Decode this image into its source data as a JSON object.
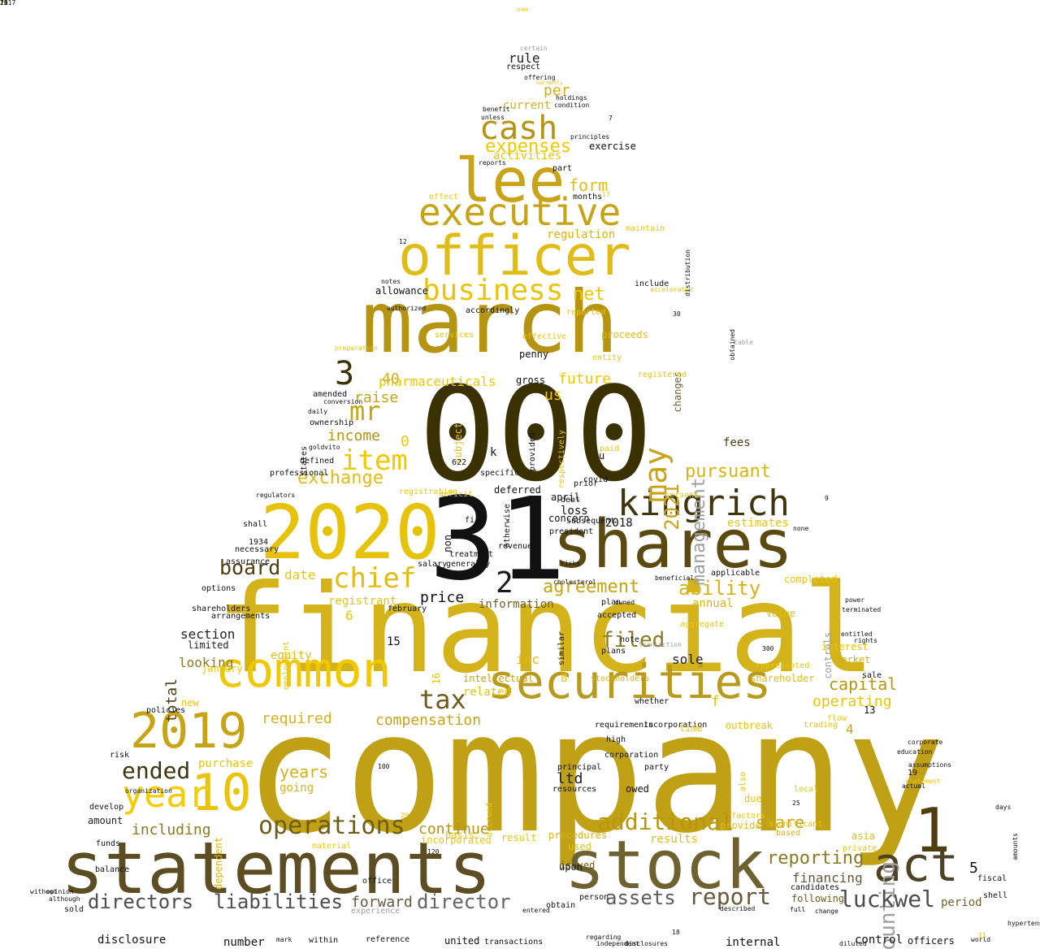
{
  "words": [
    {
      "text": "company",
      "color": "#C0A015"
    },
    {
      "text": "financial",
      "color": "#D4B21A"
    },
    {
      "text": "000",
      "color": "#3B3100"
    },
    {
      "text": "march",
      "color": "#B59412"
    },
    {
      "text": "31",
      "color": "#111111"
    },
    {
      "text": "statements",
      "color": "#5C4E22"
    },
    {
      "text": "stock",
      "color": "#6E6231"
    },
    {
      "text": "2020",
      "color": "#E6C20A"
    },
    {
      "text": "officer",
      "color": "#E0BC16"
    },
    {
      "text": "shares",
      "color": "#5A4A10"
    },
    {
      "text": "securities",
      "color": "#B89A1E"
    },
    {
      "text": "common",
      "color": "#F0C800"
    },
    {
      "text": "lee",
      "color": "#C9A318"
    },
    {
      "text": "executive",
      "color": "#C6A414"
    },
    {
      "text": "2019",
      "color": "#C6A414"
    },
    {
      "text": "act",
      "color": "#4E4224"
    },
    {
      "text": "1",
      "color": "#4E3E10"
    },
    {
      "text": "kingrich",
      "color": "#3F3510"
    },
    {
      "text": "10",
      "color": "#E8C50C"
    },
    {
      "text": "cash",
      "color": "#B59412"
    },
    {
      "text": "year",
      "color": "#F5CC00"
    },
    {
      "text": "may",
      "color": "#C9A318"
    },
    {
      "text": "accounting",
      "color": "#9E9E9E"
    },
    {
      "text": "business",
      "color": "#E8C50C"
    },
    {
      "text": "chief",
      "color": "#E0BC16"
    },
    {
      "text": "operations",
      "color": "#6E5D18"
    },
    {
      "text": "item",
      "color": "#F0C800"
    },
    {
      "text": "mr",
      "color": "#C6A414"
    },
    {
      "text": "additional",
      "color": "#B8960E"
    },
    {
      "text": "directors",
      "color": "#4D4D4D"
    },
    {
      "text": "liabilities",
      "color": "#4D4D4D"
    },
    {
      "text": "report",
      "color": "#66583A"
    },
    {
      "text": "luckwel",
      "color": "#4D4D4D"
    },
    {
      "text": "tax",
      "color": "#6E5D18"
    },
    {
      "text": "ended",
      "color": "#3F3510"
    },
    {
      "text": "3",
      "color": "#3B3100"
    },
    {
      "text": "2",
      "color": "#1A1A1A"
    },
    {
      "text": "assets",
      "color": "#5C5C5C"
    },
    {
      "text": "management",
      "color": "#9E9E9E"
    },
    {
      "text": "2021",
      "color": "#C9A318"
    },
    {
      "text": "board",
      "color": "#4E3E10"
    },
    {
      "text": "expenses",
      "color": "#F0C800"
    },
    {
      "text": "exchange",
      "color": "#E0BC16"
    },
    {
      "text": "ability",
      "color": "#D4B21A"
    },
    {
      "text": "agreement",
      "color": "#C6A414"
    },
    {
      "text": "director",
      "color": "#666666"
    },
    {
      "text": "filed",
      "color": "#8A7A22"
    },
    {
      "text": "reporting",
      "color": "#8A7A22"
    },
    {
      "text": "pursuant",
      "color": "#D9B412"
    },
    {
      "text": "net",
      "color": "#F0C800"
    },
    {
      "text": "form",
      "color": "#E0BC16"
    },
    {
      "text": "share",
      "color": "#C9A318"
    },
    {
      "text": "capital",
      "color": "#B8960E"
    },
    {
      "text": "required",
      "color": "#D4B21A"
    },
    {
      "text": "compensation",
      "color": "#C6A414"
    },
    {
      "text": "including",
      "color": "#8A7A22"
    },
    {
      "text": "years",
      "color": "#D4B21A"
    },
    {
      "text": "income",
      "color": "#B59412"
    },
    {
      "text": "raise",
      "color": "#C6A414"
    },
    {
      "text": "pharmaceuticals",
      "color": "#F0C800"
    },
    {
      "text": "future",
      "color": "#F0C800"
    },
    {
      "text": "us",
      "color": "#F0C800"
    },
    {
      "text": "continue",
      "color": "#B59412"
    },
    {
      "text": "forward",
      "color": "#66583A"
    },
    {
      "text": "financing",
      "color": "#66583A"
    },
    {
      "text": "operating",
      "color": "#E8C50C"
    },
    {
      "text": "section",
      "color": "#222222"
    },
    {
      "text": "price",
      "color": "#111111"
    },
    {
      "text": "date",
      "color": "#E8C50C"
    },
    {
      "text": "regulation",
      "color": "#D9B412"
    },
    {
      "text": "activities",
      "color": "#E8C50C"
    },
    {
      "text": "current",
      "color": "#D4B21A"
    },
    {
      "text": "per",
      "color": "#D4B21A"
    },
    {
      "text": "rule",
      "color": "#222222"
    },
    {
      "text": "total",
      "color": "#4E3E10"
    },
    {
      "text": "looking",
      "color": "#8A7A22"
    },
    {
      "text": "sole",
      "color": "#222222"
    },
    {
      "text": "fees",
      "color": "#4E3E10"
    },
    {
      "text": "ltd",
      "color": "#222222"
    },
    {
      "text": "inc",
      "color": "#E0BC16"
    },
    {
      "text": "purchase",
      "color": "#E8C50C"
    },
    {
      "text": "going",
      "color": "#D4B21A"
    },
    {
      "text": "related",
      "color": "#E8C50C"
    },
    {
      "text": "information",
      "color": "#6E6231"
    },
    {
      "text": "equity",
      "color": "#E0BC16"
    },
    {
      "text": "annual",
      "color": "#D9B412"
    },
    {
      "text": "registrant",
      "color": "#E8C50C"
    },
    {
      "text": "intellectual",
      "color": "#C6A414"
    },
    {
      "text": "estimates",
      "color": "#E8C50C"
    },
    {
      "text": "amount",
      "color": "#222222"
    },
    {
      "text": "dependent",
      "color": "#D9B412"
    },
    {
      "text": "results",
      "color": "#E0BC16"
    },
    {
      "text": "procedures",
      "color": "#D4B21A"
    },
    {
      "text": "issued",
      "color": "#6E5D18"
    },
    {
      "text": "upon",
      "color": "#111111"
    },
    {
      "text": "following",
      "color": "#6E5D18"
    },
    {
      "text": "period",
      "color": "#6E6231"
    },
    {
      "text": "limited",
      "color": "#222222"
    },
    {
      "text": "interest",
      "color": "#E8C50C"
    },
    {
      "text": "market",
      "color": "#D4B21A"
    },
    {
      "text": "value",
      "color": "#E0BC16"
    },
    {
      "text": "shareholder",
      "color": "#E0BC16"
    },
    {
      "text": "stockholders",
      "color": "#D4B21A"
    },
    {
      "text": "allowance",
      "color": "#111111"
    },
    {
      "text": "proceeds",
      "color": "#E0BC16"
    },
    {
      "text": "2018",
      "color": "#111111"
    },
    {
      "text": "concern",
      "color": "#111111"
    },
    {
      "text": "loss",
      "color": "#111111"
    },
    {
      "text": "deferred",
      "color": "#111111"
    },
    {
      "text": "april",
      "color": "#111111"
    },
    {
      "text": "plan",
      "color": "#111111"
    },
    {
      "text": "plans",
      "color": "#111111"
    },
    {
      "text": "note",
      "color": "#111111"
    },
    {
      "text": "whether",
      "color": "#111111"
    },
    {
      "text": "changes",
      "color": "#6E6231"
    },
    {
      "text": "registered",
      "color": "#E8C50C"
    },
    {
      "text": "penny",
      "color": "#111111"
    },
    {
      "text": "gross",
      "color": "#111111"
    },
    {
      "text": "40",
      "color": "#D4B21A"
    },
    {
      "text": "0",
      "color": "#F0C800"
    },
    {
      "text": "6",
      "color": "#E8C50C"
    },
    {
      "text": "8",
      "color": "#E8C50C"
    },
    {
      "text": "15",
      "color": "#111111"
    },
    {
      "text": "f",
      "color": "#E8C50C"
    },
    {
      "text": "k",
      "color": "#111111"
    },
    {
      "text": "u",
      "color": "#111111"
    },
    {
      "text": "5",
      "color": "#111111"
    },
    {
      "text": "4",
      "color": "#C6A414"
    },
    {
      "text": "13",
      "color": "#111111"
    },
    {
      "text": "19",
      "color": "#111111"
    },
    {
      "text": "completed",
      "color": "#E8C50C"
    },
    {
      "text": "controls",
      "color": "#9E9E9E"
    },
    {
      "text": "based",
      "color": "#D4B21A"
    },
    {
      "text": "asia",
      "color": "#E0BC16"
    },
    {
      "text": "provide",
      "color": "#E0BC16"
    },
    {
      "text": "result",
      "color": "#E8C50C"
    },
    {
      "text": "used",
      "color": "#E8C50C"
    },
    {
      "text": "basis",
      "color": "#E8C50C"
    },
    {
      "text": "incorporated",
      "color": "#E8C50C"
    },
    {
      "text": "material",
      "color": "#E8C50C"
    },
    {
      "text": "new",
      "color": "#E8C50C"
    },
    {
      "text": "january",
      "color": "#E8C50C"
    },
    {
      "text": "employment",
      "color": "#E8C50C"
    },
    {
      "text": "accrued",
      "color": "#E8C50C"
    },
    {
      "text": "shareholders",
      "color": "#111111"
    },
    {
      "text": "options",
      "color": "#111111"
    },
    {
      "text": "arrangements",
      "color": "#111111"
    },
    {
      "text": "assurance",
      "color": "#111111"
    },
    {
      "text": "necessary",
      "color": "#111111"
    },
    {
      "text": "1934",
      "color": "#111111"
    },
    {
      "text": "shall",
      "color": "#111111"
    },
    {
      "text": "professional",
      "color": "#111111"
    },
    {
      "text": "defined",
      "color": "#111111"
    },
    {
      "text": "states",
      "color": "#111111"
    },
    {
      "text": "ownership",
      "color": "#111111"
    },
    {
      "text": "amended",
      "color": "#111111"
    },
    {
      "text": "policies",
      "color": "#111111"
    },
    {
      "text": "funds",
      "color": "#111111"
    },
    {
      "text": "develop",
      "color": "#111111"
    },
    {
      "text": "balance",
      "color": "#111111"
    },
    {
      "text": "risk",
      "color": "#111111"
    },
    {
      "text": "sold",
      "color": "#111111"
    },
    {
      "text": "disclosure",
      "color": "#111111"
    },
    {
      "text": "number",
      "color": "#111111"
    },
    {
      "text": "within",
      "color": "#111111"
    },
    {
      "text": "reference",
      "color": "#111111"
    },
    {
      "text": "united",
      "color": "#111111"
    },
    {
      "text": "transactions",
      "color": "#111111"
    },
    {
      "text": "internal",
      "color": "#111111"
    },
    {
      "text": "control",
      "color": "#111111"
    },
    {
      "text": "officers",
      "color": "#111111"
    },
    {
      "text": "regarding",
      "color": "#111111"
    },
    {
      "text": "independent",
      "color": "#111111"
    },
    {
      "text": "disclosures",
      "color": "#111111"
    },
    {
      "text": "person",
      "color": "#111111"
    },
    {
      "text": "obtain",
      "color": "#111111"
    },
    {
      "text": "entered",
      "color": "#111111"
    },
    {
      "text": "experience",
      "color": "#9E9E9E"
    },
    {
      "text": "office",
      "color": "#111111"
    },
    {
      "text": "fiscal",
      "color": "#111111"
    },
    {
      "text": "shell",
      "color": "#111111"
    },
    {
      "text": "candidates",
      "color": "#111111"
    },
    {
      "text": "full",
      "color": "#111111"
    },
    {
      "text": "change",
      "color": "#111111"
    },
    {
      "text": "statement",
      "color": "#E8C50C"
    },
    {
      "text": "actual",
      "color": "#111111"
    },
    {
      "text": "education",
      "color": "#111111"
    },
    {
      "text": "requirements",
      "color": "#111111"
    },
    {
      "text": "incorporation",
      "color": "#111111"
    },
    {
      "text": "high",
      "color": "#111111"
    },
    {
      "text": "corporation",
      "color": "#111111"
    },
    {
      "text": "party",
      "color": "#111111"
    },
    {
      "text": "principal",
      "color": "#111111"
    },
    {
      "text": "resources",
      "color": "#111111"
    },
    {
      "text": "time",
      "color": "#E8C50C"
    },
    {
      "text": "outbreak",
      "color": "#E8C50C"
    },
    {
      "text": "due",
      "color": "#E8C50C"
    },
    {
      "text": "factors",
      "color": "#E8C50C"
    },
    {
      "text": "significant",
      "color": "#E8C50C"
    },
    {
      "text": "private",
      "color": "#E8C50C"
    },
    {
      "text": "also",
      "color": "#E8C50C"
    },
    {
      "text": "local",
      "color": "#E8C50C"
    },
    {
      "text": "trading",
      "color": "#E8C50C"
    },
    {
      "text": "flow",
      "color": "#E8C50C"
    },
    {
      "text": "sale",
      "color": "#111111"
    },
    {
      "text": "aggregate",
      "color": "#E8C50C"
    },
    {
      "text": "represented",
      "color": "#E8C50C"
    },
    {
      "text": "salary",
      "color": "#111111"
    },
    {
      "text": "generally",
      "color": "#111111"
    },
    {
      "text": "treatment",
      "color": "#111111"
    },
    {
      "text": "revenue",
      "color": "#111111"
    },
    {
      "text": "february",
      "color": "#111111"
    },
    {
      "text": "non",
      "color": "#111111"
    },
    {
      "text": "firm",
      "color": "#111111"
    },
    {
      "text": "otherwise",
      "color": "#111111"
    },
    {
      "text": "subsequent",
      "color": "#111111"
    },
    {
      "text": "president",
      "color": "#111111"
    },
    {
      "text": "covid",
      "color": "#111111"
    },
    {
      "text": "debt",
      "color": "#111111"
    },
    {
      "text": "prior",
      "color": "#111111"
    },
    {
      "text": "subject",
      "color": "#E8C50C"
    },
    {
      "text": "provided",
      "color": "#111111"
    },
    {
      "text": "respectively",
      "color": "#E8C50C"
    },
    {
      "text": "paid",
      "color": "#E8C50C"
    },
    {
      "text": "registration",
      "color": "#E8C50C"
    },
    {
      "text": "deficit",
      "color": "#E8C50C"
    },
    {
      "text": "specific",
      "color": "#111111"
    },
    {
      "text": "persons",
      "color": "#E8C50C"
    },
    {
      "text": "accepted",
      "color": "#111111"
    },
    {
      "text": "similar",
      "color": "#111111"
    },
    {
      "text": "transaction",
      "color": "#9E9E9E"
    },
    {
      "text": "owned",
      "color": "#111111"
    },
    {
      "text": "cholesterol",
      "color": "#111111"
    },
    {
      "text": "risks",
      "color": "#111111"
    },
    {
      "text": "beneficial",
      "color": "#111111"
    },
    {
      "text": "applicable",
      "color": "#111111"
    },
    {
      "text": "one",
      "color": "#E8C50C"
    },
    {
      "text": "certain",
      "color": "#9E9E9E"
    },
    {
      "text": "respect",
      "color": "#111111"
    },
    {
      "text": "offering",
      "color": "#111111"
    },
    {
      "text": "currently",
      "color": "#E8C50C"
    },
    {
      "text": "holdings",
      "color": "#111111"
    },
    {
      "text": "condition",
      "color": "#111111"
    },
    {
      "text": "benefit",
      "color": "#111111"
    },
    {
      "text": "unless",
      "color": "#111111"
    },
    {
      "text": "principles",
      "color": "#111111"
    },
    {
      "text": "reports",
      "color": "#111111"
    },
    {
      "text": "part",
      "color": "#111111"
    },
    {
      "text": "effect",
      "color": "#E8C50C"
    },
    {
      "text": "months",
      "color": "#111111"
    },
    {
      "text": "maintain",
      "color": "#E8C50C"
    },
    {
      "text": "notes",
      "color": "#111111"
    },
    {
      "text": "include",
      "color": "#111111"
    },
    {
      "text": "accelerated",
      "color": "#E8C50C"
    },
    {
      "text": "authorized",
      "color": "#111111"
    },
    {
      "text": "accordingly",
      "color": "#111111"
    },
    {
      "text": "reported",
      "color": "#E8C50C"
    },
    {
      "text": "services",
      "color": "#E8C50C"
    },
    {
      "text": "effective",
      "color": "#E8C50C"
    },
    {
      "text": "entity",
      "color": "#E8C50C"
    },
    {
      "text": "preparation",
      "color": "#E8C50C"
    },
    {
      "text": "conversion",
      "color": "#111111"
    },
    {
      "text": "goldvito",
      "color": "#111111"
    },
    {
      "text": "regulators",
      "color": "#111111"
    },
    {
      "text": "organization",
      "color": "#111111"
    },
    {
      "text": "distribution",
      "color": "#111111"
    },
    {
      "text": "table",
      "color": "#9E9E9E"
    },
    {
      "text": "none",
      "color": "#111111"
    },
    {
      "text": "days",
      "color": "#111111"
    },
    {
      "text": "mark",
      "color": "#111111"
    },
    {
      "text": "although",
      "color": "#111111"
    },
    {
      "text": "opinion",
      "color": "#111111"
    },
    {
      "text": "without",
      "color": "#111111"
    },
    {
      "text": "described",
      "color": "#111111"
    },
    {
      "text": "obtained",
      "color": "#111111"
    },
    {
      "text": "hypertension",
      "color": "#111111"
    },
    {
      "text": "world",
      "color": "#111111"
    },
    {
      "text": "diluted",
      "color": "#111111"
    },
    {
      "text": "corporate",
      "color": "#111111"
    },
    {
      "text": "assumptions",
      "color": "#111111"
    },
    {
      "text": "amounts",
      "color": "#111111"
    },
    {
      "text": "terminated",
      "color": "#111111"
    },
    {
      "text": "entitled",
      "color": "#111111"
    },
    {
      "text": "rights",
      "color": "#111111"
    },
    {
      "text": "power",
      "color": "#111111"
    },
    {
      "text": "exercise",
      "color": "#111111"
    },
    {
      "text": "daily",
      "color": "#111111"
    },
    {
      "text": "owed",
      "color": "#111111"
    },
    {
      "text": "7",
      "color": "#111111"
    },
    {
      "text": "9",
      "color": "#111111"
    },
    {
      "text": "12",
      "color": "#111111"
    },
    {
      "text": "18",
      "color": "#111111"
    },
    {
      "text": "25",
      "color": "#111111"
    },
    {
      "text": "30",
      "color": "#111111"
    },
    {
      "text": "300",
      "color": "#111111"
    },
    {
      "text": "622",
      "color": "#111111"
    },
    {
      "text": "120",
      "color": "#111111"
    },
    {
      "text": "100",
      "color": "#111111"
    },
    {
      "text": "20",
      "color": "#E8C50C"
    },
    {
      "text": "17",
      "color": "#E8C50C"
    },
    {
      "text": "11",
      "color": "#E8C50C"
    },
    {
      "text": "16",
      "color": "#E8C50C"
    },
    {
      "text": "14",
      "color": "#E8C50C"
    },
    {
      "text": "75",
      "color": "#111111"
    },
    {
      "text": "2017",
      "color": "#111111"
    },
    {
      "text": "ii",
      "color": "#111111"
    }
  ]
}
